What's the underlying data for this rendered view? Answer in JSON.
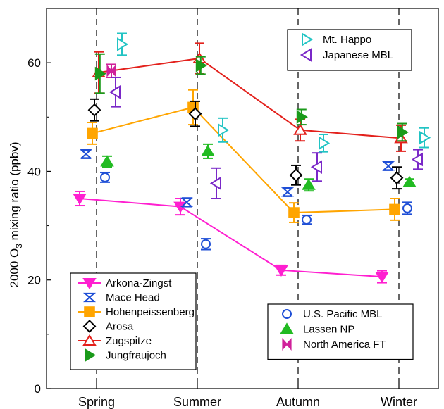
{
  "chart_data": {
    "type": "scatter",
    "title": "",
    "ylabel_parts": [
      "2000 O",
      "3",
      " mixing ratio (ppbv)"
    ],
    "categories": [
      "Spring",
      "Summer",
      "Autumn",
      "Winter"
    ],
    "ylim": [
      0,
      70
    ],
    "yticks": [
      0,
      20,
      40,
      60
    ],
    "grid": "dashed vertical lines at category positions",
    "series": [
      {
        "name": "Arkona-Zingst",
        "marker": "triangle-down",
        "filled": true,
        "color": "#ff1fd0",
        "offset": -0.4,
        "line": true,
        "values": [
          35.0,
          33.5,
          21.8,
          20.6
        ],
        "errors": [
          1.3,
          1.5,
          0.9,
          1.1
        ]
      },
      {
        "name": "Mace Head",
        "marker": "bowtie-v",
        "filled": false,
        "color": "#1f4fd6",
        "offset": -0.25,
        "line": false,
        "values": [
          43.2,
          34.3,
          36.2,
          41.0
        ],
        "errors": [
          0.8,
          0.8,
          0.8,
          0.8
        ]
      },
      {
        "name": "Hohenpeissenberg",
        "marker": "square",
        "filled": true,
        "color": "#ffa500",
        "offset": -0.1,
        "line": true,
        "values": [
          47.0,
          51.8,
          32.4,
          33.0
        ],
        "errors": [
          2.0,
          3.2,
          1.8,
          2.0
        ]
      },
      {
        "name": "Arosa",
        "marker": "diamond",
        "filled": false,
        "color": "#000000",
        "offset": -0.05,
        "line": false,
        "values": [
          51.3,
          50.6,
          39.3,
          38.8
        ],
        "errors": [
          2.0,
          2.3,
          1.8,
          2.0
        ]
      },
      {
        "name": "Zugspitze",
        "marker": "triangle-up",
        "filled": false,
        "color": "#e3211c",
        "offset": 0.05,
        "line": true,
        "values": [
          58.2,
          60.8,
          47.6,
          46.1
        ],
        "errors": [
          3.8,
          2.8,
          2.0,
          2.4
        ]
      },
      {
        "name": "Jungfraujoch",
        "marker": "triangle-right",
        "filled": true,
        "color": "#1a9a1a",
        "offset": 0.08,
        "line": false,
        "values": [
          58.0,
          59.5,
          50.0,
          47.2
        ],
        "errors": [
          3.6,
          1.6,
          1.4,
          1.6
        ]
      },
      {
        "name": "U.S. Pacific MBL",
        "marker": "circle",
        "filled": false,
        "color": "#1f4fd6",
        "offset": 0.2,
        "line": false,
        "values": [
          38.9,
          26.6,
          31.1,
          33.2
        ],
        "errors": [
          0.9,
          1.0,
          0.8,
          1.1
        ]
      },
      {
        "name": "Lassen NP",
        "marker": "triangle-up",
        "filled": true,
        "color": "#22bb22",
        "offset": 0.25,
        "line": false,
        "values": [
          41.8,
          43.7,
          37.5,
          38.0
        ],
        "errors": [
          1.0,
          1.3,
          1.1,
          0.6
        ]
      },
      {
        "name": "North America FT",
        "marker": "bowtie-h",
        "filled": true,
        "color": "#d0209a",
        "offset": 0.35,
        "line": false,
        "values": [
          58.5,
          null,
          null,
          null
        ],
        "errors": [
          1.2,
          null,
          null,
          null
        ]
      },
      {
        "name": "Japanese MBL",
        "marker": "triangle-left",
        "filled": false,
        "color": "#7a28c8",
        "offset": 0.45,
        "line": false,
        "values": [
          54.6,
          37.8,
          40.8,
          42.2
        ],
        "errors": [
          2.7,
          2.8,
          2.6,
          1.8
        ]
      },
      {
        "name": "Mt. Happo",
        "marker": "triangle-right",
        "filled": false,
        "color": "#22c4c4",
        "offset": 0.6,
        "line": false,
        "values": [
          63.4,
          47.6,
          45.2,
          46.2
        ],
        "errors": [
          2.0,
          2.2,
          1.6,
          1.8
        ]
      }
    ],
    "legends": [
      {
        "placement": "bottom-left",
        "entries": [
          "Arkona-Zingst",
          "Mace Head",
          "Hohenpeissenberg",
          "Arosa",
          "Zugspitze",
          "Jungfraujoch"
        ]
      },
      {
        "placement": "bottom-right",
        "entries": [
          "U.S. Pacific MBL",
          "Lassen NP",
          "North America FT"
        ]
      },
      {
        "placement": "top-right",
        "entries": [
          "Mt. Happo",
          "Japanese MBL"
        ]
      }
    ]
  }
}
